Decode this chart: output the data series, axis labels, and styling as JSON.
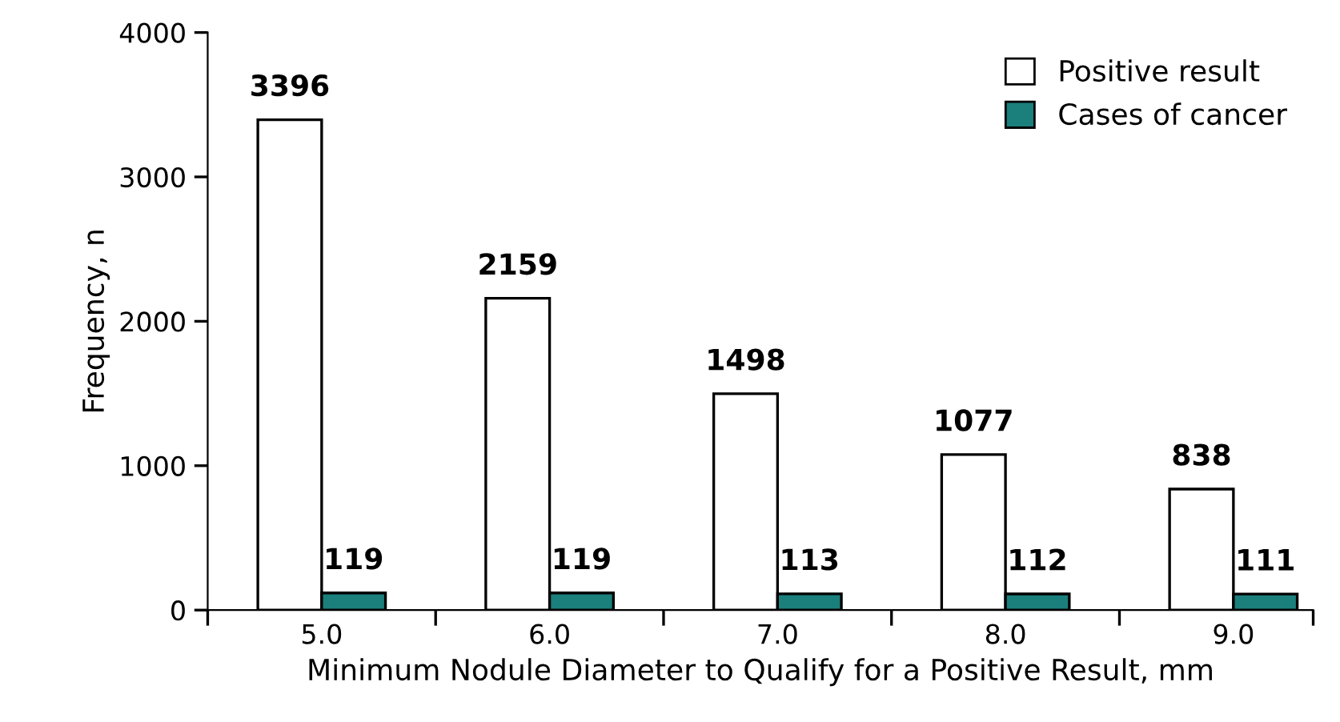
{
  "chart_data": {
    "type": "bar",
    "xlabel": "Minimum Nodule Diameter to Qualify for a Positive Result, mm",
    "ylabel": "Frequency, n",
    "categories": [
      "5.0",
      "6.0",
      "7.0",
      "8.0",
      "9.0"
    ],
    "series": [
      {
        "name": "Positive result",
        "color": "#ffffff",
        "values": [
          3396,
          2159,
          1498,
          1077,
          838
        ]
      },
      {
        "name": "Cases of cancer",
        "color": "#1b7f7c",
        "values": [
          119,
          119,
          113,
          112,
          111
        ]
      }
    ],
    "ylim": [
      0,
      4000
    ],
    "yticks": [
      0,
      1000,
      2000,
      3000,
      4000
    ],
    "data_labels": true,
    "legend": "top right",
    "grid": false
  }
}
